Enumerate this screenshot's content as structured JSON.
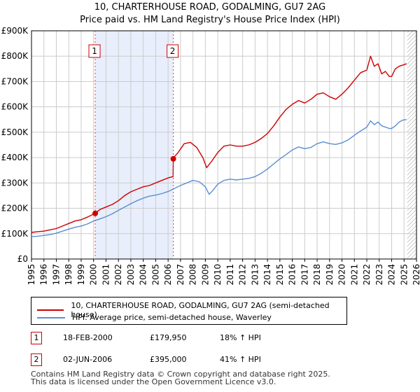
{
  "chart_data": {
    "type": "line",
    "title": "10, CHARTERHOUSE ROAD, GODALMING, GU7 2AG",
    "subtitle": "Price paid vs. HM Land Registry's House Price Index (HPI)",
    "xlim": [
      1995,
      2026
    ],
    "ylim": [
      0,
      900000
    ],
    "x_ticks": [
      1995,
      1996,
      1997,
      1998,
      1999,
      2000,
      2001,
      2002,
      2003,
      2004,
      2005,
      2006,
      2007,
      2008,
      2009,
      2010,
      2011,
      2012,
      2013,
      2014,
      2015,
      2016,
      2017,
      2018,
      2019,
      2020,
      2021,
      2022,
      2023,
      2024,
      2025,
      2026
    ],
    "y_ticks": [
      {
        "value": 0,
        "label": "£0"
      },
      {
        "value": 100000,
        "label": "£100K"
      },
      {
        "value": 200000,
        "label": "£200K"
      },
      {
        "value": 300000,
        "label": "£300K"
      },
      {
        "value": 400000,
        "label": "£400K"
      },
      {
        "value": 500000,
        "label": "£500K"
      },
      {
        "value": 600000,
        "label": "£600K"
      },
      {
        "value": 700000,
        "label": "£700K"
      },
      {
        "value": 800000,
        "label": "£800K"
      },
      {
        "value": 900000,
        "label": "£900K"
      }
    ],
    "grid": true,
    "shaded_region": {
      "from": 2000.13,
      "to": 2006.42
    },
    "forecast_hatch_from": 2025.25,
    "series": [
      {
        "name": "10, CHARTERHOUSE ROAD, GODALMING, GU7 2AG (semi-detached house)",
        "color": "#cc0000",
        "x": [
          1995.0,
          1995.5,
          1996.0,
          1996.5,
          1997.0,
          1997.5,
          1998.0,
          1998.5,
          1999.0,
          1999.5,
          2000.13,
          2000.5,
          2001.0,
          2001.5,
          2002.0,
          2002.5,
          2003.0,
          2003.5,
          2004.0,
          2004.5,
          2005.0,
          2005.5,
          2006.0,
          2006.4,
          2006.42,
          2006.45,
          2006.8,
          2007.3,
          2007.8,
          2008.3,
          2008.8,
          2009.1,
          2009.5,
          2010.0,
          2010.5,
          2011.0,
          2011.5,
          2012.0,
          2012.5,
          2013.0,
          2013.5,
          2014.0,
          2014.5,
          2015.0,
          2015.5,
          2016.0,
          2016.5,
          2017.0,
          2017.5,
          2018.0,
          2018.5,
          2019.0,
          2019.5,
          2020.0,
          2020.5,
          2021.0,
          2021.5,
          2022.0,
          2022.3,
          2022.6,
          2022.9,
          2023.2,
          2023.5,
          2023.8,
          2024.0,
          2024.3,
          2024.6,
          2024.9,
          2025.2
        ],
        "values": [
          105000,
          108000,
          110000,
          115000,
          120000,
          130000,
          140000,
          150000,
          155000,
          165000,
          179950,
          195000,
          205000,
          215000,
          230000,
          250000,
          265000,
          275000,
          285000,
          290000,
          300000,
          310000,
          320000,
          325000,
          395000,
          400000,
          420000,
          455000,
          460000,
          440000,
          400000,
          360000,
          385000,
          420000,
          445000,
          450000,
          445000,
          445000,
          450000,
          460000,
          475000,
          495000,
          525000,
          560000,
          590000,
          610000,
          625000,
          615000,
          630000,
          650000,
          655000,
          640000,
          630000,
          650000,
          675000,
          705000,
          735000,
          745000,
          800000,
          760000,
          770000,
          730000,
          740000,
          720000,
          720000,
          750000,
          760000,
          765000,
          770000
        ]
      },
      {
        "name": "HPI: Average price, semi-detached house, Waverley",
        "color": "#5b8fd0",
        "x": [
          1995.0,
          1995.5,
          1996.0,
          1996.5,
          1997.0,
          1997.5,
          1998.0,
          1998.5,
          1999.0,
          1999.5,
          2000.0,
          2000.5,
          2001.0,
          2001.5,
          2002.0,
          2002.5,
          2003.0,
          2003.5,
          2004.0,
          2004.5,
          2005.0,
          2005.5,
          2006.0,
          2006.5,
          2007.0,
          2007.5,
          2008.0,
          2008.5,
          2009.0,
          2009.3,
          2009.6,
          2010.0,
          2010.5,
          2011.0,
          2011.5,
          2012.0,
          2012.5,
          2013.0,
          2013.5,
          2014.0,
          2014.5,
          2015.0,
          2015.5,
          2016.0,
          2016.5,
          2017.0,
          2017.5,
          2018.0,
          2018.5,
          2019.0,
          2019.5,
          2020.0,
          2020.5,
          2021.0,
          2021.5,
          2022.0,
          2022.3,
          2022.6,
          2022.9,
          2023.2,
          2023.5,
          2023.8,
          2024.0,
          2024.3,
          2024.6,
          2024.9,
          2025.2
        ],
        "values": [
          88000,
          90000,
          93000,
          96000,
          102000,
          110000,
          118000,
          125000,
          130000,
          138000,
          150000,
          158000,
          167000,
          178000,
          192000,
          205000,
          218000,
          230000,
          240000,
          248000,
          252000,
          258000,
          266000,
          278000,
          290000,
          300000,
          310000,
          305000,
          285000,
          255000,
          270000,
          295000,
          310000,
          315000,
          312000,
          315000,
          318000,
          325000,
          338000,
          355000,
          375000,
          395000,
          412000,
          430000,
          442000,
          435000,
          440000,
          455000,
          462000,
          455000,
          452000,
          458000,
          470000,
          488000,
          505000,
          520000,
          545000,
          530000,
          540000,
          525000,
          520000,
          515000,
          515000,
          525000,
          540000,
          548000,
          550000
        ]
      }
    ],
    "markers": [
      {
        "label": "1",
        "x": 2000.13,
        "value": 179950
      },
      {
        "label": "2",
        "x": 2006.42,
        "value": 395000
      }
    ]
  },
  "legend": {
    "property_label": "10, CHARTERHOUSE ROAD, GODALMING, GU7 2AG (semi-detached house)",
    "hpi_label": "HPI: Average price, semi-detached house, Waverley",
    "property_color": "#cc0000",
    "hpi_color": "#5b8fd0"
  },
  "sales": [
    {
      "badge": "1",
      "date": "18-FEB-2000",
      "price": "£179,950",
      "hpi": "18% ↑ HPI"
    },
    {
      "badge": "2",
      "date": "02-JUN-2006",
      "price": "£395,000",
      "hpi": "41% ↑ HPI"
    }
  ],
  "footer": {
    "line1": "Contains HM Land Registry data © Crown copyright and database right 2025.",
    "line2": "This data is licensed under the Open Government Licence v3.0."
  }
}
